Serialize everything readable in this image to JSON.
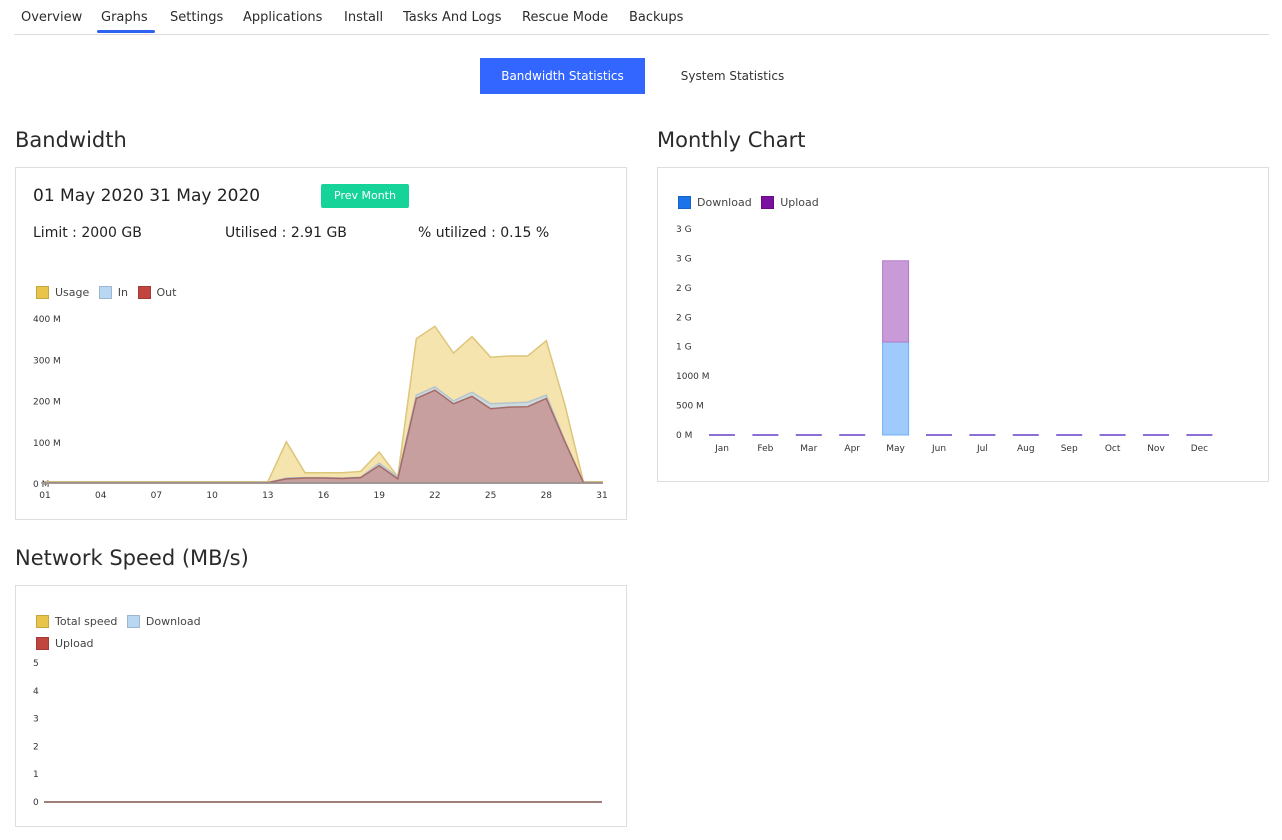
{
  "tabs": [
    "Overview",
    "Graphs",
    "Settings",
    "Applications",
    "Install",
    "Tasks And Logs",
    "Rescue Mode",
    "Backups"
  ],
  "active_tab": "Graphs",
  "stat_buttons": {
    "active": "Bandwidth Statistics",
    "inactive": "System Statistics"
  },
  "bandwidth": {
    "title": "Bandwidth",
    "date_range": "01 May 2020  31 May 2020",
    "prev_button": "Prev Month",
    "limit": "Limit : 2000 GB",
    "utilised": "Utilised : 2.91 GB",
    "percent": "% utilized : 0.15 %"
  },
  "monthly": {
    "title": "Monthly Chart"
  },
  "network": {
    "title": "Network Speed (MB/s)"
  },
  "colors": {
    "accent": "#3366ff",
    "prev_button": "#16d39a",
    "usage": "#e8c44a",
    "in": "#b9d7f2",
    "out": "#c0453e",
    "download": "#1a73e8",
    "upload": "#7b0f9e"
  },
  "chart_data": [
    {
      "type": "area",
      "legend": [
        "Usage",
        "In",
        "Out"
      ],
      "x_ticks": [
        "01",
        "04",
        "07",
        "10",
        "13",
        "16",
        "19",
        "22",
        "25",
        "28",
        "31"
      ],
      "y_ticks": [
        "0 M",
        "100 M",
        "200 M",
        "300 M",
        "400 M"
      ],
      "ylim": [
        0,
        400
      ],
      "unit": "M",
      "x": [
        1,
        2,
        3,
        4,
        5,
        6,
        7,
        8,
        9,
        10,
        11,
        12,
        13,
        14,
        15,
        16,
        17,
        18,
        19,
        20,
        21,
        22,
        23,
        24,
        25,
        26,
        27,
        28,
        29,
        30,
        31
      ],
      "series": [
        {
          "name": "Usage",
          "values": [
            3,
            3,
            3,
            3,
            3,
            3,
            3,
            3,
            3,
            3,
            3,
            3,
            3,
            100,
            25,
            25,
            25,
            28,
            75,
            15,
            350,
            380,
            315,
            355,
            305,
            308,
            308,
            345,
            190,
            3,
            3
          ]
        },
        {
          "name": "In",
          "values": [
            1,
            1,
            1,
            1,
            1,
            1,
            1,
            1,
            1,
            1,
            1,
            1,
            1,
            12,
            13,
            13,
            12,
            14,
            48,
            15,
            213,
            233,
            199,
            220,
            192,
            194,
            196,
            213,
            103,
            1,
            1
          ]
        },
        {
          "name": "Out",
          "values": [
            1,
            1,
            1,
            1,
            1,
            1,
            1,
            1,
            1,
            1,
            1,
            1,
            1,
            10,
            12,
            12,
            11,
            13,
            42,
            10,
            205,
            225,
            192,
            210,
            180,
            184,
            185,
            205,
            100,
            1,
            1
          ]
        }
      ]
    },
    {
      "type": "bar",
      "legend": [
        "Download",
        "Upload"
      ],
      "categories": [
        "Jan",
        "Feb",
        "Mar",
        "Apr",
        "May",
        "Jun",
        "Jul",
        "Aug",
        "Sep",
        "Oct",
        "Nov",
        "Dec"
      ],
      "y_ticks": [
        "0 M",
        "500 M",
        "1000 M",
        "1 G",
        "2 G",
        "2 G",
        "3 G",
        "3 G"
      ],
      "ylim": [
        0,
        3.5
      ],
      "unit": "G",
      "stacked": true,
      "series": [
        {
          "name": "Download",
          "values": [
            0,
            0,
            0,
            0,
            1.58,
            0,
            0,
            0,
            0,
            0,
            0,
            0
          ]
        },
        {
          "name": "Upload",
          "values": [
            0,
            0,
            0,
            0,
            1.38,
            0,
            0,
            0,
            0,
            0,
            0,
            0
          ]
        }
      ]
    },
    {
      "type": "line",
      "legend": [
        "Total speed",
        "Download",
        "Upload"
      ],
      "y_ticks": [
        "0",
        "1",
        "2",
        "3",
        "4",
        "5"
      ],
      "ylim": [
        0,
        5
      ],
      "series": [
        {
          "name": "Total speed",
          "values": [
            0,
            0
          ]
        },
        {
          "name": "Download",
          "values": [
            0,
            0
          ]
        },
        {
          "name": "Upload",
          "values": [
            0,
            0
          ]
        }
      ]
    }
  ]
}
